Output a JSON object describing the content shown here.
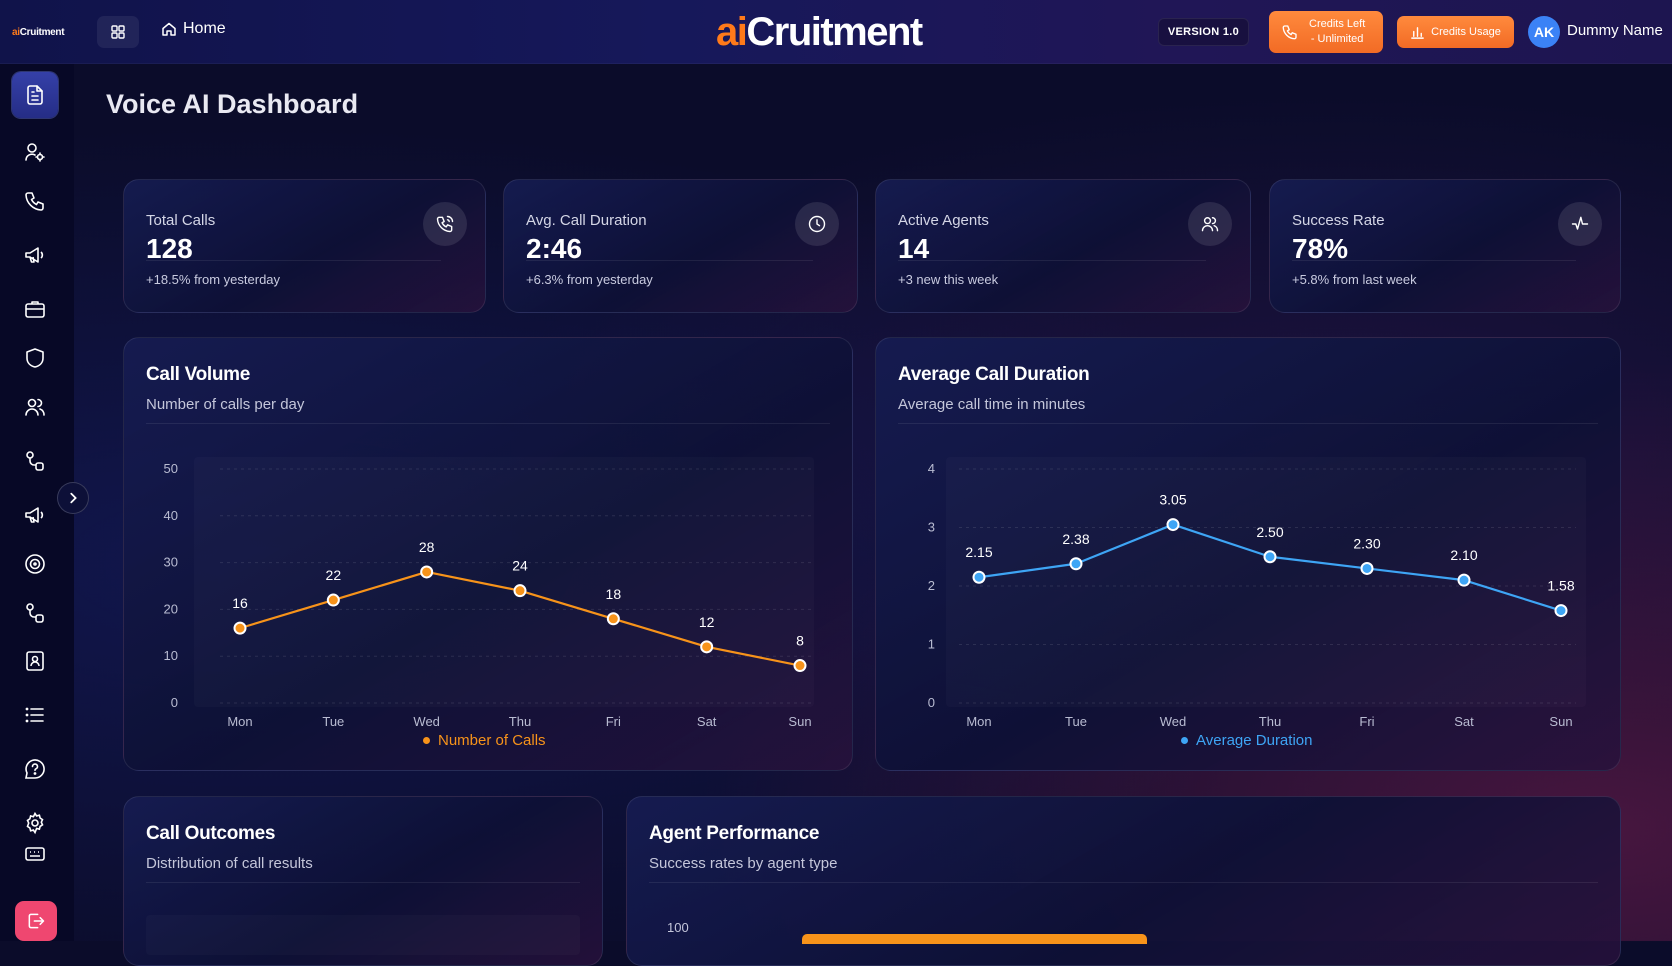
{
  "header": {
    "mini_logo_ai": "ai",
    "mini_logo_rest": "Cruitment",
    "home_label": "Home",
    "brand_ai": "ai",
    "brand_rest": "Cruitment",
    "version": "VERSION 1.0",
    "credits_left_line1": "Credits Left",
    "credits_left_line2": "- Unlimited",
    "credits_usage": "Credits Usage",
    "avatar_initials": "AK",
    "user_name": "Dummy Name"
  },
  "sidebar": {
    "items": [
      "document-icon",
      "user-gear-icon",
      "phone-icon",
      "megaphone-icon",
      "briefcase-icon",
      "shield-icon",
      "users-icon",
      "workflow-icon",
      "megaphone-icon",
      "target-icon",
      "workflow-icon",
      "contact-book-icon",
      "list-icon",
      "help-icon",
      "gear-icon",
      "keyboard-icon"
    ],
    "active_index": 0
  },
  "page": {
    "title": "Voice AI Dashboard"
  },
  "stats": [
    {
      "label": "Total Calls",
      "value": "128",
      "delta": "+18.5% from yesterday",
      "icon": "phone-wave-icon"
    },
    {
      "label": "Avg. Call Duration",
      "value": "2:46",
      "delta": "+6.3% from yesterday",
      "icon": "clock-icon"
    },
    {
      "label": "Active Agents",
      "value": "14",
      "delta": "+3 new this week",
      "icon": "users-icon"
    },
    {
      "label": "Success Rate",
      "value": "78%",
      "delta": "+5.8% from last week",
      "icon": "activity-icon"
    }
  ],
  "panels": {
    "call_volume": {
      "title": "Call Volume",
      "subtitle": "Number of calls per day"
    },
    "avg_duration": {
      "title": "Average Call Duration",
      "subtitle": "Average call time in minutes"
    },
    "call_outcomes": {
      "title": "Call Outcomes",
      "subtitle": "Distribution of call results"
    },
    "agent_performance": {
      "title": "Agent Performance",
      "subtitle": "Success rates by agent type"
    }
  },
  "colors": {
    "orange": "#f7931a",
    "blue": "#3ea5f5",
    "accent": "#ff7a1a",
    "logout": "#ef4770"
  },
  "chart_data": [
    {
      "type": "line",
      "categories": [
        "Mon",
        "Tue",
        "Wed",
        "Thu",
        "Fri",
        "Sat",
        "Sun"
      ],
      "series": [
        {
          "name": "Number of Calls",
          "values": [
            16,
            22,
            28,
            24,
            18,
            12,
            8
          ]
        }
      ],
      "yticks": [
        "0",
        "10",
        "20",
        "30",
        "40",
        "50"
      ],
      "ylim": [
        0,
        50
      ],
      "data_labels": true
    },
    {
      "type": "line",
      "categories": [
        "Mon",
        "Tue",
        "Wed",
        "Thu",
        "Fri",
        "Sat",
        "Sun"
      ],
      "series": [
        {
          "name": "Average Duration",
          "values": [
            2.15,
            2.38,
            3.05,
            2.5,
            2.3,
            2.1,
            1.58
          ]
        }
      ],
      "data_labels_text": [
        "2.15",
        "2.38",
        "3.05",
        "2.50",
        "2.30",
        "2.10",
        "1.58"
      ],
      "yticks": [
        "0",
        "1",
        "2",
        "3",
        "4"
      ],
      "ylim": [
        0,
        4
      ]
    },
    {
      "type": "bar",
      "yticks": [
        "100"
      ]
    }
  ]
}
